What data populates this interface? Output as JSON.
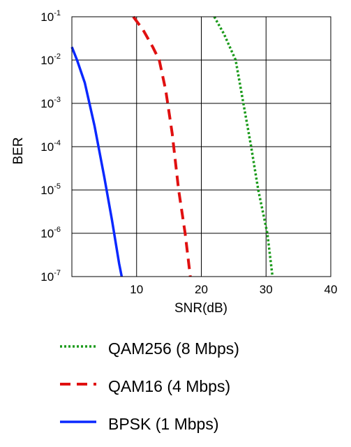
{
  "chart_data": {
    "type": "line",
    "xlabel": "SNR(dB)",
    "ylabel": "BER",
    "xlim": [
      0,
      40
    ],
    "ylim_exponent": [
      -7,
      -1
    ],
    "y_scale": "log",
    "grid": true,
    "legend_position": "bottom",
    "x_ticks": [
      "10",
      "20",
      "30",
      "40"
    ],
    "y_ticks": [
      {
        "base": "10",
        "exp": "-1",
        "value": 0.1
      },
      {
        "base": "10",
        "exp": "-2",
        "value": 0.01
      },
      {
        "base": "10",
        "exp": "-3",
        "value": 0.001
      },
      {
        "base": "10",
        "exp": "-4",
        "value": 0.0001
      },
      {
        "base": "10",
        "exp": "-5",
        "value": 1e-05
      },
      {
        "base": "10",
        "exp": "-6",
        "value": 1e-06
      },
      {
        "base": "10",
        "exp": "-7",
        "value": 1e-07
      }
    ],
    "series": [
      {
        "name": "QAM256 (8 Mbps)",
        "color": "#1a9a1a",
        "style": "dotted",
        "points": [
          [
            22,
            0.1
          ],
          [
            23.5,
            0.04
          ],
          [
            25.3,
            0.01
          ],
          [
            26.5,
            0.001
          ],
          [
            27.7,
            0.0001
          ],
          [
            28.8,
            1e-05
          ],
          [
            30.2,
            1e-06
          ],
          [
            31,
            1e-07
          ]
        ]
      },
      {
        "name": "QAM16 (4 Mbps)",
        "color": "#e01010",
        "style": "dashed",
        "points": [
          [
            9.5,
            0.1
          ],
          [
            11,
            0.05
          ],
          [
            12.5,
            0.02
          ],
          [
            13.5,
            0.01
          ],
          [
            14.5,
            0.002
          ],
          [
            15.5,
            0.0002
          ],
          [
            16.5,
            1e-05
          ],
          [
            17.5,
            1e-06
          ],
          [
            18.3,
            1e-07
          ]
        ]
      },
      {
        "name": "BPSK (1 Mbps)",
        "color": "#0a28ff",
        "style": "solid",
        "points": [
          [
            0,
            0.02
          ],
          [
            0.8,
            0.01
          ],
          [
            2,
            0.003
          ],
          [
            3.5,
            0.0003
          ],
          [
            5,
            2e-05
          ],
          [
            6.2,
            2e-06
          ],
          [
            7.3,
            2e-07
          ],
          [
            7.7,
            1e-07
          ]
        ]
      }
    ]
  },
  "legend": {
    "items": [
      {
        "label": "QAM256 (8 Mbps)",
        "color": "#1a9a1a",
        "style": "dotted"
      },
      {
        "label": "QAM16 (4 Mbps)",
        "color": "#e01010",
        "style": "dashed"
      },
      {
        "label": "BPSK (1 Mbps)",
        "color": "#0a28ff",
        "style": "solid"
      }
    ]
  }
}
